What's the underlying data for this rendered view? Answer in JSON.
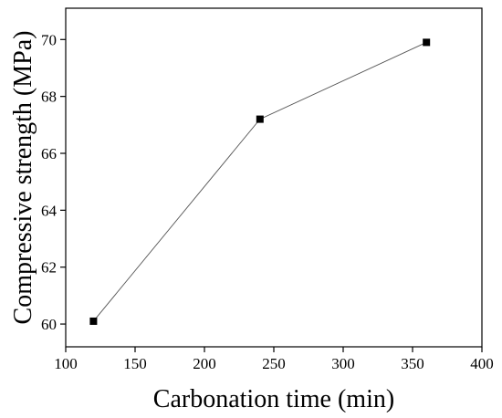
{
  "chart_data": {
    "type": "line",
    "xlabel": "Carbonation time (min)",
    "ylabel": "Compressive strength (MPa)",
    "xlim": [
      100,
      400
    ],
    "ylim": [
      59.2,
      71.1
    ],
    "x_ticks": [
      100,
      150,
      200,
      250,
      300,
      350,
      400
    ],
    "y_ticks": [
      60,
      62,
      64,
      66,
      68,
      70
    ],
    "grid": false,
    "series": [
      {
        "x": [
          120,
          240,
          360
        ],
        "values": [
          60.1,
          67.2,
          69.9
        ],
        "marker": "square",
        "color": "#000000"
      }
    ]
  }
}
